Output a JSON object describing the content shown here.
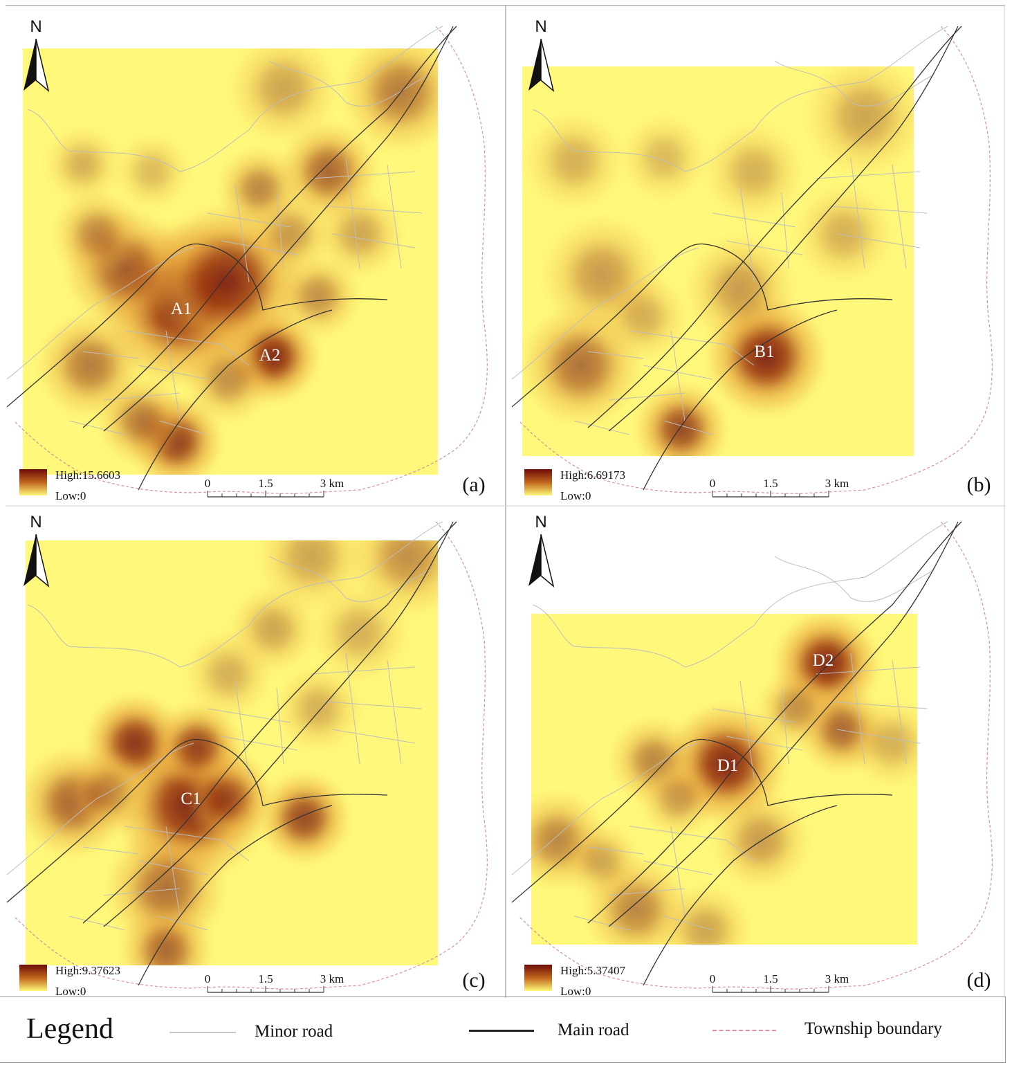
{
  "north_label": "N",
  "scale_bar": {
    "ticks": [
      "0",
      "1.5",
      "3 km"
    ]
  },
  "panels": [
    {
      "id": "a",
      "tag": "(a)",
      "high": "High:15.6603",
      "low": "Low:0",
      "hotspots": [
        {
          "label": "A1",
          "intensity": 1.0
        },
        {
          "label": "A2",
          "intensity": 1.0
        }
      ]
    },
    {
      "id": "b",
      "tag": "(b)",
      "high": "High:6.69173",
      "low": "Low:0",
      "hotspots": [
        {
          "label": "B1",
          "intensity": 1.0
        }
      ]
    },
    {
      "id": "c",
      "tag": "(c)",
      "high": "High:9.37623",
      "low": "Low:0",
      "hotspots": [
        {
          "label": "C1",
          "intensity": 1.0
        }
      ]
    },
    {
      "id": "d",
      "tag": "(d)",
      "high": "High:5.37407",
      "low": "Low:0",
      "hotspots": [
        {
          "label": "D1",
          "intensity": 1.0
        },
        {
          "label": "D2",
          "intensity": 1.0
        }
      ]
    }
  ],
  "legend": {
    "title": "Legend",
    "items": [
      {
        "label": "Minor road",
        "color": "#c8c8c8"
      },
      {
        "label": "Main road",
        "color": "#222222"
      },
      {
        "label": "Township boundary",
        "color": "#d9909c"
      }
    ]
  },
  "colors": {
    "low": "#fff87a",
    "mid": "#e8a53c",
    "high": "#6b0d08"
  }
}
